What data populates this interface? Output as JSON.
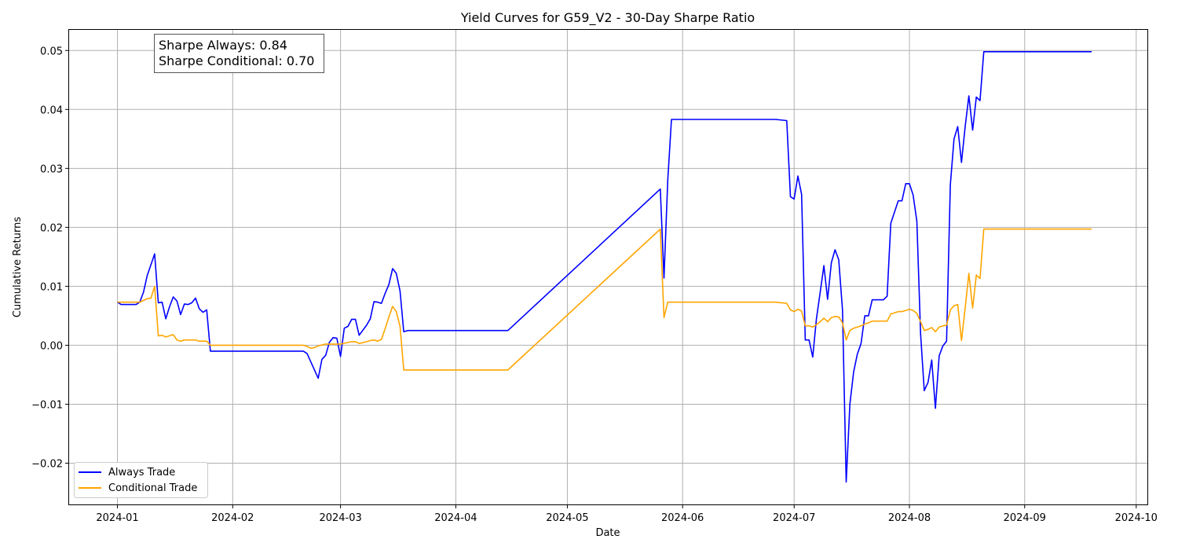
{
  "chart_data": {
    "type": "line",
    "title": "Yield Curves for G59_V2 - 30-Day Sharpe Ratio",
    "xlabel": "Date",
    "ylabel": "Cumulative Returns",
    "xlim": [
      "2023-12-19",
      "2024-10-04"
    ],
    "ylim": [
      -0.027,
      0.0535
    ],
    "grid": true,
    "legend_position": "lower-left",
    "x_tick_labels": [
      "2024-01",
      "2024-02",
      "2024-03",
      "2024-04",
      "2024-05",
      "2024-06",
      "2024-07",
      "2024-08",
      "2024-09",
      "2024-10"
    ],
    "y_tick_labels": [
      "−0.02",
      "−0.01",
      "0.00",
      "0.01",
      "0.02",
      "0.03",
      "0.04",
      "0.05"
    ],
    "annotation": [
      "Sharpe Always: 0.84",
      "Sharpe Conditional: 0.70"
    ],
    "series": [
      {
        "name": "Always Trade",
        "color": "#0000ff",
        "points": [
          [
            "2024-01-01",
            0.0073
          ],
          [
            "2024-01-02",
            0.0069
          ],
          [
            "2024-01-03",
            0.0069
          ],
          [
            "2024-01-05",
            0.0069
          ],
          [
            "2024-01-06",
            0.0069
          ],
          [
            "2024-01-07",
            0.0073
          ],
          [
            "2024-01-08",
            0.009
          ],
          [
            "2024-01-09",
            0.0118
          ],
          [
            "2024-01-11",
            0.0155
          ],
          [
            "2024-01-12",
            0.0072
          ],
          [
            "2024-01-13",
            0.0073
          ],
          [
            "2024-01-14",
            0.0045
          ],
          [
            "2024-01-15",
            0.0065
          ],
          [
            "2024-01-16",
            0.0082
          ],
          [
            "2024-01-17",
            0.0075
          ],
          [
            "2024-01-18",
            0.0052
          ],
          [
            "2024-01-19",
            0.007
          ],
          [
            "2024-01-20",
            0.0069
          ],
          [
            "2024-01-21",
            0.0072
          ],
          [
            "2024-01-22",
            0.008
          ],
          [
            "2024-01-23",
            0.0062
          ],
          [
            "2024-01-24",
            0.0056
          ],
          [
            "2024-01-25",
            0.006
          ],
          [
            "2024-01-26",
            -0.001
          ],
          [
            "2024-02-20",
            -0.001
          ],
          [
            "2024-02-21",
            -0.0014
          ],
          [
            "2024-02-24",
            -0.0056
          ],
          [
            "2024-02-25",
            -0.0024
          ],
          [
            "2024-02-26",
            -0.0017
          ],
          [
            "2024-02-27",
            0.0005
          ],
          [
            "2024-02-28",
            0.0013
          ],
          [
            "2024-02-29",
            0.0012
          ],
          [
            "2024-03-01",
            -0.0019
          ],
          [
            "2024-03-02",
            0.0029
          ],
          [
            "2024-03-03",
            0.0032
          ],
          [
            "2024-03-04",
            0.0044
          ],
          [
            "2024-03-05",
            0.0044
          ],
          [
            "2024-03-06",
            0.0017
          ],
          [
            "2024-03-08",
            0.0034
          ],
          [
            "2024-03-09",
            0.0045
          ],
          [
            "2024-03-10",
            0.0074
          ],
          [
            "2024-03-11",
            0.0073
          ],
          [
            "2024-03-12",
            0.0071
          ],
          [
            "2024-03-13",
            0.0088
          ],
          [
            "2024-03-14",
            0.0103
          ],
          [
            "2024-03-15",
            0.013
          ],
          [
            "2024-03-16",
            0.0122
          ],
          [
            "2024-03-17",
            0.0092
          ],
          [
            "2024-03-18",
            0.0023
          ],
          [
            "2024-03-19",
            0.0025
          ],
          [
            "2024-04-15",
            0.0025
          ],
          [
            "2024-05-26",
            0.0265
          ],
          [
            "2024-05-27",
            0.0114
          ],
          [
            "2024-05-28",
            0.028
          ],
          [
            "2024-05-29",
            0.0383
          ],
          [
            "2024-06-26",
            0.0383
          ],
          [
            "2024-06-29",
            0.0381
          ],
          [
            "2024-06-30",
            0.0252
          ],
          [
            "2024-07-01",
            0.0248
          ],
          [
            "2024-07-02",
            0.0287
          ],
          [
            "2024-07-03",
            0.0256
          ],
          [
            "2024-07-04",
            0.0009
          ],
          [
            "2024-07-05",
            0.0009
          ],
          [
            "2024-07-06",
            -0.002
          ],
          [
            "2024-07-07",
            0.0045
          ],
          [
            "2024-07-08",
            0.009
          ],
          [
            "2024-07-09",
            0.0135
          ],
          [
            "2024-07-10",
            0.0078
          ],
          [
            "2024-07-11",
            0.014
          ],
          [
            "2024-07-12",
            0.0162
          ],
          [
            "2024-07-13",
            0.0145
          ],
          [
            "2024-07-14",
            0.006
          ],
          [
            "2024-07-15",
            -0.0232
          ],
          [
            "2024-07-16",
            -0.01
          ],
          [
            "2024-07-17",
            -0.0045
          ],
          [
            "2024-07-18",
            -0.0015
          ],
          [
            "2024-07-19",
            0.0003
          ],
          [
            "2024-07-20",
            0.005
          ],
          [
            "2024-07-21",
            0.005
          ],
          [
            "2024-07-22",
            0.0077
          ],
          [
            "2024-07-25",
            0.0077
          ],
          [
            "2024-07-26",
            0.0083
          ],
          [
            "2024-07-27",
            0.0207
          ],
          [
            "2024-07-29",
            0.0245
          ],
          [
            "2024-07-30",
            0.0245
          ],
          [
            "2024-07-31",
            0.0274
          ],
          [
            "2024-08-01",
            0.0274
          ],
          [
            "2024-08-02",
            0.0255
          ],
          [
            "2024-08-03",
            0.021
          ],
          [
            "2024-08-04",
            0.002
          ],
          [
            "2024-08-05",
            -0.0077
          ],
          [
            "2024-08-06",
            -0.0063
          ],
          [
            "2024-08-07",
            -0.0025
          ],
          [
            "2024-08-08",
            -0.0107
          ],
          [
            "2024-08-09",
            -0.0018
          ],
          [
            "2024-08-10",
            -0.0001
          ],
          [
            "2024-08-11",
            0.0007
          ],
          [
            "2024-08-12",
            0.0272
          ],
          [
            "2024-08-13",
            0.035
          ],
          [
            "2024-08-14",
            0.0371
          ],
          [
            "2024-08-15",
            0.031
          ],
          [
            "2024-08-16",
            0.0371
          ],
          [
            "2024-08-17",
            0.0423
          ],
          [
            "2024-08-18",
            0.0365
          ],
          [
            "2024-08-19",
            0.0421
          ],
          [
            "2024-08-20",
            0.0415
          ],
          [
            "2024-08-21",
            0.0498
          ],
          [
            "2024-09-19",
            0.0498
          ]
        ]
      },
      {
        "name": "Conditional Trade",
        "color": "#ffa500",
        "points": [
          [
            "2024-01-01",
            0.0073
          ],
          [
            "2024-01-02",
            0.0073
          ],
          [
            "2024-01-06",
            0.0073
          ],
          [
            "2024-01-07",
            0.0073
          ],
          [
            "2024-01-08",
            0.0076
          ],
          [
            "2024-01-09",
            0.0079
          ],
          [
            "2024-01-10",
            0.008
          ],
          [
            "2024-01-11",
            0.01
          ],
          [
            "2024-01-12",
            0.0016
          ],
          [
            "2024-01-13",
            0.0017
          ],
          [
            "2024-01-14",
            0.0014
          ],
          [
            "2024-01-15",
            0.0016
          ],
          [
            "2024-01-16",
            0.0018
          ],
          [
            "2024-01-17",
            0.0009
          ],
          [
            "2024-01-18",
            0.0007
          ],
          [
            "2024-01-19",
            0.0009
          ],
          [
            "2024-01-22",
            0.0009
          ],
          [
            "2024-01-23",
            0.0007
          ],
          [
            "2024-01-25",
            0.0007
          ],
          [
            "2024-01-26",
            0.0
          ],
          [
            "2024-02-20",
            0.0
          ],
          [
            "2024-02-21",
            -0.0002
          ],
          [
            "2024-02-22",
            -0.0005
          ],
          [
            "2024-02-23",
            -0.0004
          ],
          [
            "2024-02-24",
            -0.0001
          ],
          [
            "2024-02-26",
            0.0002
          ],
          [
            "2024-03-01",
            0.0002
          ],
          [
            "2024-03-04",
            0.0006
          ],
          [
            "2024-03-05",
            0.0006
          ],
          [
            "2024-03-06",
            0.0003
          ],
          [
            "2024-03-08",
            0.0006
          ],
          [
            "2024-03-09",
            0.0008
          ],
          [
            "2024-03-10",
            0.0009
          ],
          [
            "2024-03-11",
            0.0007
          ],
          [
            "2024-03-12",
            0.001
          ],
          [
            "2024-03-13",
            0.0028
          ],
          [
            "2024-03-14",
            0.0048
          ],
          [
            "2024-03-15",
            0.0066
          ],
          [
            "2024-03-16",
            0.0057
          ],
          [
            "2024-03-17",
            0.0032
          ],
          [
            "2024-03-18",
            -0.0042
          ],
          [
            "2024-04-15",
            -0.0042
          ],
          [
            "2024-05-26",
            0.0197
          ],
          [
            "2024-05-27",
            0.0047
          ],
          [
            "2024-05-28",
            0.0073
          ],
          [
            "2024-06-26",
            0.0073
          ],
          [
            "2024-06-29",
            0.0071
          ],
          [
            "2024-06-30",
            0.006
          ],
          [
            "2024-07-01",
            0.0057
          ],
          [
            "2024-07-02",
            0.0061
          ],
          [
            "2024-07-03",
            0.0058
          ],
          [
            "2024-07-04",
            0.0033
          ],
          [
            "2024-07-05",
            0.0033
          ],
          [
            "2024-07-06",
            0.0031
          ],
          [
            "2024-07-07",
            0.0035
          ],
          [
            "2024-07-08",
            0.004
          ],
          [
            "2024-07-09",
            0.0046
          ],
          [
            "2024-07-10",
            0.004
          ],
          [
            "2024-07-11",
            0.0047
          ],
          [
            "2024-07-12",
            0.0049
          ],
          [
            "2024-07-13",
            0.0048
          ],
          [
            "2024-07-14",
            0.0038
          ],
          [
            "2024-07-15",
            0.0009
          ],
          [
            "2024-07-16",
            0.0025
          ],
          [
            "2024-07-17",
            0.0029
          ],
          [
            "2024-07-19",
            0.0033
          ],
          [
            "2024-07-20",
            0.0036
          ],
          [
            "2024-07-21",
            0.0038
          ],
          [
            "2024-07-22",
            0.0041
          ],
          [
            "2024-07-26",
            0.0041
          ],
          [
            "2024-07-27",
            0.0053
          ],
          [
            "2024-07-29",
            0.0057
          ],
          [
            "2024-07-30",
            0.0057
          ],
          [
            "2024-07-31",
            0.0059
          ],
          [
            "2024-08-01",
            0.0061
          ],
          [
            "2024-08-02",
            0.0059
          ],
          [
            "2024-08-03",
            0.0054
          ],
          [
            "2024-08-04",
            0.004
          ],
          [
            "2024-08-05",
            0.0025
          ],
          [
            "2024-08-06",
            0.0027
          ],
          [
            "2024-08-07",
            0.003
          ],
          [
            "2024-08-08",
            0.0023
          ],
          [
            "2024-08-09",
            0.0031
          ],
          [
            "2024-08-10",
            0.0033
          ],
          [
            "2024-08-11",
            0.0034
          ],
          [
            "2024-08-12",
            0.006
          ],
          [
            "2024-08-13",
            0.0067
          ],
          [
            "2024-08-14",
            0.0069
          ],
          [
            "2024-08-15",
            0.0008
          ],
          [
            "2024-08-16",
            0.0063
          ],
          [
            "2024-08-17",
            0.0122
          ],
          [
            "2024-08-18",
            0.0063
          ],
          [
            "2024-08-19",
            0.0119
          ],
          [
            "2024-08-20",
            0.0113
          ],
          [
            "2024-08-21",
            0.0197
          ],
          [
            "2024-09-19",
            0.0197
          ]
        ]
      }
    ]
  }
}
